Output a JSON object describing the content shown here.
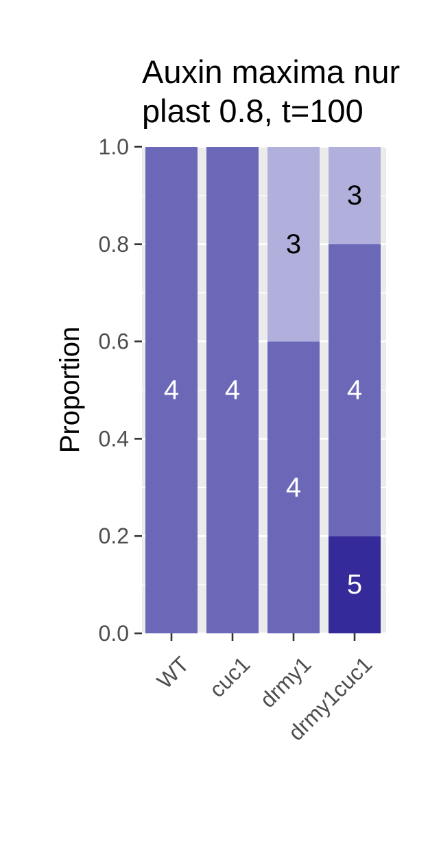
{
  "chart_data": {
    "type": "bar",
    "stacked": true,
    "title_lines": [
      "Auxin maxima nur",
      "plast 0.8, t=100"
    ],
    "xlabel": "",
    "ylabel": "Proportion",
    "ylim": [
      0,
      1
    ],
    "y_ticks": [
      "0.0",
      "0.2",
      "0.4",
      "0.6",
      "0.8",
      "1.0"
    ],
    "categories": [
      "WT",
      "cuc1",
      "drmy1",
      "drmy1cuc1"
    ],
    "series": [
      {
        "label": "5",
        "color": "#352a9a",
        "text_color": "#ffffff",
        "values": [
          0,
          0,
          0,
          0.2
        ]
      },
      {
        "label": "4",
        "color": "#6c68b8",
        "text_color": "#ffffff",
        "values": [
          1.0,
          1.0,
          0.6,
          0.6
        ]
      },
      {
        "label": "3",
        "color": "#b1b0dc",
        "text_color": "#000000",
        "values": [
          0,
          0,
          0.4,
          0.2
        ]
      }
    ],
    "panel_background": "#ebebeb",
    "grid": true,
    "legend": "none"
  }
}
